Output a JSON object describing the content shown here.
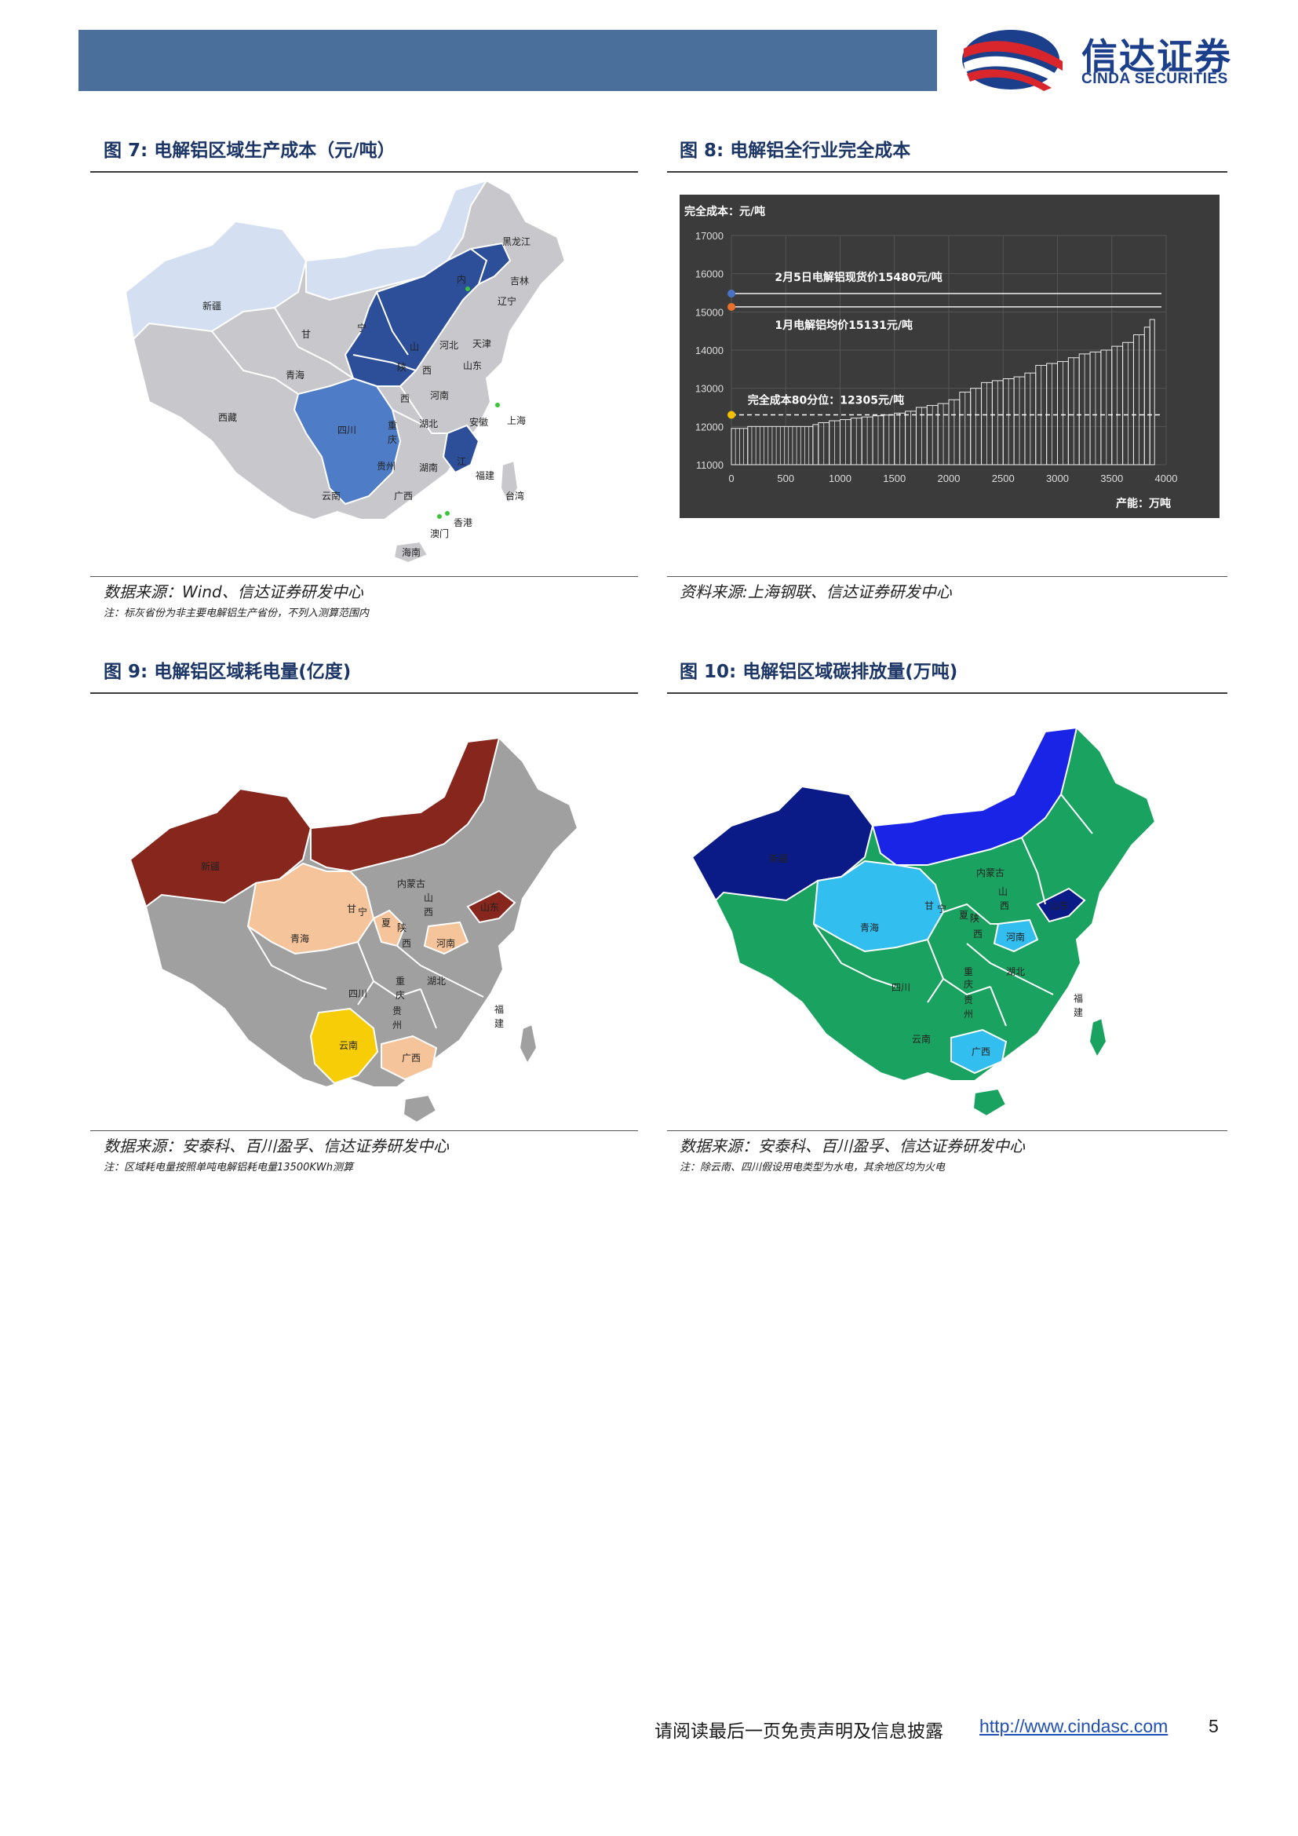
{
  "header": {
    "logo_cn": "信达证券",
    "logo_en": "CINDA SECURITIES"
  },
  "colors": {
    "header_bar": "#4a6f9a",
    "title_blue": "#1b3566",
    "map_grey": "#c8c8cc",
    "map_light_blue": "#d4e0f2",
    "map_mid_blue": "#4f7cc6",
    "map_dark_blue": "#2d4f99",
    "map9_red": "#86261d",
    "map9_peach": "#f5c49b",
    "map9_yellow": "#f7cd08",
    "map9_grey": "#a0a0a0",
    "map10_green": "#1aa260",
    "map10_navy": "#0a1a86",
    "map10_blue": "#1a24e6",
    "map10_cyan": "#32bff0"
  },
  "fig7": {
    "title": "图 7:  电解铝区域生产成本（元/吨）",
    "source": "数据来源：Wind、信达证券研发中心",
    "note": "注：标灰省份为非主要电解铝生产省份，不列入测算范围内",
    "labels": [
      "新疆",
      "青海",
      "西藏",
      "甘",
      "宁",
      "内",
      "黑龙江",
      "吉林",
      "辽宁",
      "天津",
      "山",
      "西",
      "陕",
      "河北",
      "山东",
      "河南",
      "安徽",
      "上海",
      "西",
      "湖北",
      "四川",
      "重",
      "庆",
      "贵州",
      "湖南",
      "江",
      "福建",
      "台湾",
      "云南",
      "广西",
      "香港",
      "澳门",
      "海南"
    ]
  },
  "fig8": {
    "title": "图 8:  电解铝全行业完全成本",
    "source": "资料来源:上海钢联、信达证券研发中心",
    "chart_data": {
      "type": "area",
      "ylabel": "完全成本：元/吨",
      "xlabel": "产能：万吨",
      "xlim": [
        0,
        4000
      ],
      "ylim": [
        11000,
        17000
      ],
      "x_ticks": [
        "0",
        "500",
        "1000",
        "1500",
        "2000",
        "2500",
        "3000",
        "3500",
        "4000"
      ],
      "y_ticks": [
        "17000",
        "16000",
        "15000",
        "14000",
        "13000",
        "12000",
        "11000"
      ],
      "x": [
        0,
        150,
        750,
        800,
        900,
        1000,
        1100,
        1200,
        1300,
        1400,
        1500,
        1600,
        1700,
        1800,
        1900,
        2000,
        2100,
        2200,
        2300,
        2400,
        2500,
        2600,
        2700,
        2800,
        2900,
        3000,
        3100,
        3200,
        3300,
        3400,
        3500,
        3600,
        3700,
        3800,
        3850
      ],
      "y": [
        11950,
        12000,
        12050,
        12100,
        12150,
        12180,
        12220,
        12250,
        12280,
        12300,
        12350,
        12400,
        12500,
        12550,
        12600,
        12700,
        12900,
        13000,
        13150,
        13200,
        13250,
        13300,
        13400,
        13600,
        13650,
        13700,
        13800,
        13900,
        13950,
        14000,
        14100,
        14200,
        14400,
        14600,
        14800
      ],
      "reference_lines": [
        {
          "label": "2月5日电解铝现货价15480元/吨",
          "value": 15480,
          "color": "#4a72c4",
          "style": "solid"
        },
        {
          "label": "1月电解铝均价15131元/吨",
          "value": 15131,
          "color": "#e8702a",
          "style": "solid"
        },
        {
          "label": "完全成本80分位：12305元/吨",
          "value": 12305,
          "color": "#f2c000",
          "style": "dashed"
        }
      ]
    }
  },
  "fig9": {
    "title": "图 9:  电解铝区域耗电量(亿度)",
    "source": "数据来源：安泰科、百川盈孚、信达证券研发中心",
    "note": "注：区域耗电量按照单吨电解铝耗电量13500KWh测算",
    "labels": [
      "新疆",
      "内蒙古",
      "甘",
      "宁",
      "夏",
      "青海",
      "山",
      "西",
      "陕",
      "西",
      "河南",
      "山东",
      "四川",
      "重",
      "庆",
      "湖北",
      "贵",
      "州",
      "福",
      "建",
      "云南",
      "广西"
    ]
  },
  "fig10": {
    "title": "图 10:  电解铝区域碳排放量(万吨)",
    "source": "数据来源：安泰科、百川盈孚、信达证券研发中心",
    "note": "注：除云南、四川假设用电类型为水电，其余地区均为火电",
    "labels": [
      "新疆",
      "内蒙古",
      "甘",
      "宁",
      "夏",
      "青海",
      "山",
      "西",
      "陕",
      "西",
      "河南",
      "山东",
      "四川",
      "重",
      "庆",
      "湖北",
      "贵",
      "州",
      "福",
      "建",
      "云南",
      "广西"
    ]
  },
  "footer": {
    "disclaimer": "请阅读最后一页免责声明及信息披露",
    "url": "http://www.cindasc.com",
    "page": "5"
  }
}
